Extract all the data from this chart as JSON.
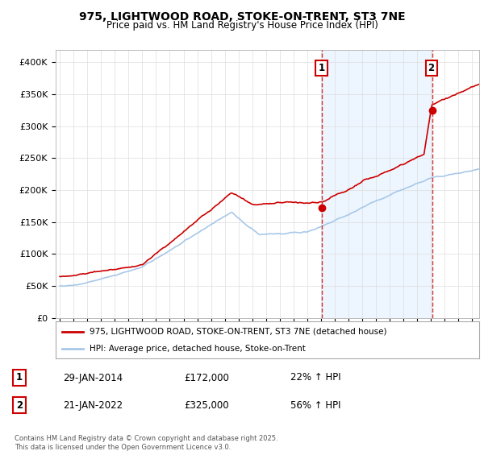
{
  "title1": "975, LIGHTWOOD ROAD, STOKE-ON-TRENT, ST3 7NE",
  "title2": "Price paid vs. HM Land Registry's House Price Index (HPI)",
  "legend1": "975, LIGHTWOOD ROAD, STOKE-ON-TRENT, ST3 7NE (detached house)",
  "legend2": "HPI: Average price, detached house, Stoke-on-Trent",
  "annotation1_label": "1",
  "annotation1_date": "29-JAN-2014",
  "annotation1_price": "£172,000",
  "annotation1_hpi": "22% ↑ HPI",
  "annotation2_label": "2",
  "annotation2_date": "21-JAN-2022",
  "annotation2_price": "£325,000",
  "annotation2_hpi": "56% ↑ HPI",
  "footer": "Contains HM Land Registry data © Crown copyright and database right 2025.\nThis data is licensed under the Open Government Licence v3.0.",
  "ylim": [
    0,
    420000
  ],
  "background_color": "#ffffff",
  "plot_bg": "#ffffff",
  "red_color": "#cc0000",
  "blue_color": "#a8c8e8",
  "shade_color": "#ddeeff",
  "vline_color": "#cc3333",
  "marker1_x": 2014.08,
  "marker1_y": 172000,
  "marker2_x": 2022.07,
  "marker2_y": 325000,
  "vline1_x": 2014.08,
  "vline2_x": 2022.07,
  "xlim_left": 1994.7,
  "xlim_right": 2025.5
}
